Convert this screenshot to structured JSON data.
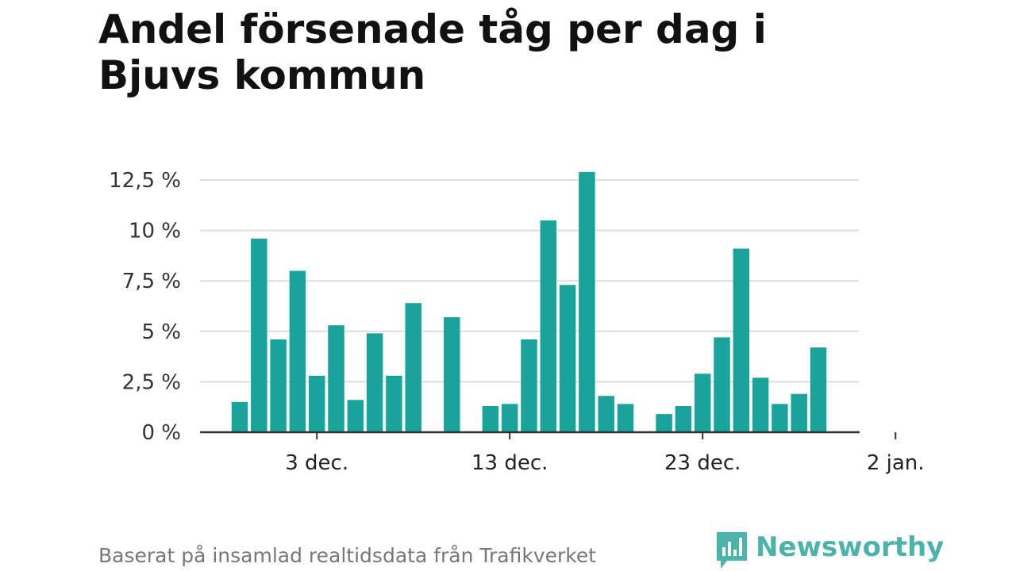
{
  "title": "Andel försenade tåg per dag i Bjuvs kommun",
  "source": "Baserat på insamlad realtidsdata från Trafikverket",
  "brand": {
    "name": "Newsworthy",
    "icon": "newsworthy-logo-icon",
    "color": "#4bb3a9"
  },
  "chart_data": {
    "type": "bar",
    "title": "Andel försenade tåg per dag i Bjuvs kommun",
    "xlabel": "",
    "ylabel": "",
    "ylim": [
      0,
      12.5
    ],
    "grid": true,
    "bar_color": "#1aa39a",
    "y_ticks": [
      {
        "value": 0,
        "label": "0 %"
      },
      {
        "value": 2.5,
        "label": "2,5 %"
      },
      {
        "value": 5,
        "label": "5 %"
      },
      {
        "value": 7.5,
        "label": "7,5 %"
      },
      {
        "value": 10,
        "label": "10 %"
      },
      {
        "value": 12.5,
        "label": "12,5 %"
      }
    ],
    "x_ticks": [
      {
        "date": "2023-12-03",
        "label": "3 dec."
      },
      {
        "date": "2023-12-13",
        "label": "13 dec."
      },
      {
        "date": "2023-12-23",
        "label": "23 dec."
      },
      {
        "date": "2024-01-02",
        "label": "2 jan."
      }
    ],
    "categories": [
      "2023-11-29",
      "2023-11-30",
      "2023-12-01",
      "2023-12-02",
      "2023-12-03",
      "2023-12-04",
      "2023-12-05",
      "2023-12-06",
      "2023-12-07",
      "2023-12-08",
      "2023-12-09",
      "2023-12-10",
      "2023-12-11",
      "2023-12-12",
      "2023-12-13",
      "2023-12-14",
      "2023-12-15",
      "2023-12-16",
      "2023-12-17",
      "2023-12-18",
      "2023-12-19",
      "2023-12-20",
      "2023-12-21",
      "2023-12-22",
      "2023-12-23",
      "2023-12-24",
      "2023-12-25",
      "2023-12-26",
      "2023-12-27",
      "2023-12-28",
      "2023-12-29",
      "2023-12-30",
      "2023-12-31",
      "2024-01-01"
    ],
    "values": [
      1.5,
      9.6,
      4.6,
      8.0,
      2.8,
      5.3,
      1.6,
      4.9,
      2.8,
      6.4,
      0,
      5.7,
      0,
      1.3,
      1.4,
      4.6,
      10.5,
      7.3,
      12.9,
      1.8,
      1.4,
      0,
      0.9,
      1.3,
      2.9,
      4.7,
      9.1,
      2.7,
      1.4,
      1.9,
      4.2,
      0,
      0,
      0
    ]
  }
}
